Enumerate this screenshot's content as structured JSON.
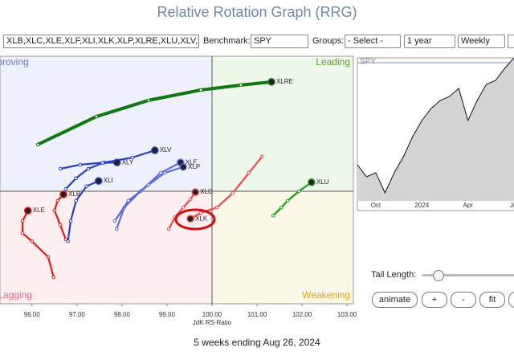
{
  "title": "Relative Rotation Graph (RRG)",
  "toolbar": {
    "symbols": "XLB,XLC,XLE,XLF,XLI,XLK,XLP,XLRE,XLU,XLV,XLY",
    "benchmark_label": "Benchmark:",
    "benchmark": "SPY",
    "groups_label": "Groups:",
    "groups": "- Select -",
    "period": "1 year",
    "frequency": "Weekly"
  },
  "controls": {
    "tail_length_label": "Tail Length:",
    "buttons": [
      "animate",
      "+",
      "-",
      "fit"
    ]
  },
  "footer": "5 weeks ending Aug 26, 2024",
  "chart_data": [
    {
      "type": "rrg",
      "x_label": "JdK RS-Ratio",
      "quadrants": [
        "Leading",
        "Weakening",
        "Lagging",
        "Improving"
      ],
      "xlim": [
        95.29,
        103.14
      ],
      "ylim": [
        97.5,
        103
      ],
      "xticks": [
        {
          "value": 96,
          "label": "96.00"
        },
        {
          "value": 97,
          "label": "97.00"
        },
        {
          "value": 98,
          "label": "98.00"
        },
        {
          "value": 99,
          "label": "99.00"
        },
        {
          "value": 100,
          "label": "100.00"
        },
        {
          "value": 101,
          "label": "101.00"
        },
        {
          "value": 102,
          "label": "102.00"
        },
        {
          "value": 103,
          "label": "103.00"
        }
      ],
      "center": [
        100,
        100
      ],
      "series": [
        {
          "name": "XLRE",
          "color": "#117711",
          "x": [
            96.13,
            97.43,
            98.59,
            99.75,
            100.64,
            101.32
          ],
          "values": [
            101.04,
            101.66,
            102.02,
            102.25,
            102.36,
            102.43
          ]
        },
        {
          "name": "XLV",
          "color": "#2a3fc0",
          "x": [
            96.63,
            97.07,
            97.61,
            98.23,
            98.73
          ],
          "values": [
            100.5,
            100.59,
            100.64,
            100.75,
            100.91
          ]
        },
        {
          "name": "XLY",
          "color": "#2a3fc0",
          "x": [
            96.75,
            96.98,
            97.25,
            97.57,
            97.89
          ],
          "values": [
            100.05,
            100.29,
            100.5,
            100.63,
            100.64
          ]
        },
        {
          "name": "XLI",
          "color": "#2a3fc0",
          "x": [
            96.8,
            96.86,
            96.98,
            97.21,
            97.48
          ],
          "values": [
            98.89,
            99.34,
            99.79,
            100.11,
            100.23
          ]
        },
        {
          "name": "XLF",
          "color": "#5a6ee0",
          "x": [
            97.88,
            98.05,
            98.41,
            98.86,
            99.3
          ],
          "values": [
            99.16,
            99.64,
            100,
            100.41,
            100.64
          ]
        },
        {
          "name": "XLP",
          "color": "#5a6ee0",
          "x": [
            97.84,
            98.14,
            98.59,
            98.95,
            99.36
          ],
          "values": [
            99.34,
            99.79,
            100.14,
            100.41,
            100.54
          ]
        },
        {
          "name": "XLK",
          "color": "#f04848",
          "x": [
            101.11,
            100.82,
            100.46,
            100.11,
            99.75,
            99.52
          ],
          "values": [
            100.77,
            100.41,
            99.96,
            99.64,
            99.52,
            99.39
          ]
        },
        {
          "name": "XLC",
          "color": "#f04848",
          "x": [
            99.04,
            99.18,
            99.36,
            99.52,
            99.63
          ],
          "values": [
            99.16,
            99.43,
            99.64,
            99.82,
            99.98
          ]
        },
        {
          "name": "XLB",
          "color": "#e01818",
          "x": [
            96.75,
            96.63,
            96.5,
            96.57,
            96.7
          ],
          "values": [
            98.93,
            99.25,
            99.57,
            99.79,
            99.93
          ]
        },
        {
          "name": "XLE",
          "color": "#e01818",
          "x": [
            96.48,
            96.36,
            96,
            95.79,
            95.79,
            95.91
          ],
          "values": [
            98.09,
            98.54,
            98.89,
            99.07,
            99.34,
            99.57
          ]
        },
        {
          "name": "XLU",
          "color": "#1a9a1a",
          "x": [
            101.36,
            101.54,
            101.68,
            101.93,
            102.21
          ],
          "values": [
            99.46,
            99.64,
            99.79,
            100,
            100.2
          ]
        }
      ]
    },
    {
      "type": "line",
      "label": "SPY",
      "categories": [
        null,
        null,
        "Oct",
        null,
        null,
        null,
        null,
        "2024",
        null,
        null,
        null,
        null,
        "Apr",
        null,
        null,
        null,
        null,
        "Jul"
      ],
      "values": [
        45,
        30,
        35,
        10,
        35,
        55,
        80,
        100,
        115,
        125,
        130,
        140,
        100,
        125,
        145,
        150,
        165,
        178
      ],
      "ylim": [
        0,
        178
      ],
      "color": "#111111",
      "fill": "#d4d4d4"
    }
  ]
}
